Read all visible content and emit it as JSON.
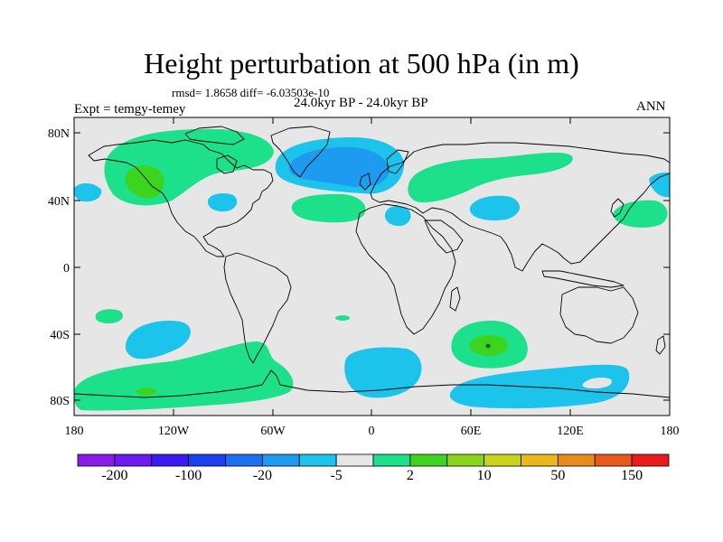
{
  "title": "Height perturbation at 500 hPa (in m)",
  "stats": "rmsd= 1.8658 diff= -6.03503e-10",
  "period": "24.0kyr BP - 24.0kyr BP",
  "experiment": "Expt = temgy-temey",
  "season": "ANN",
  "lat_ticks": [
    "80N",
    "40N",
    "0",
    "40S",
    "80S"
  ],
  "lon_ticks": [
    "180",
    "120W",
    "60W",
    "0",
    "60E",
    "120E",
    "180"
  ],
  "colorbar": {
    "colors": [
      "#8a1ce8",
      "#6a1cf0",
      "#3a1cf0",
      "#1c40f0",
      "#1c6ff0",
      "#1c9bf0",
      "#1cc3ea",
      "#e6e6e6",
      "#1ce08a",
      "#3cd41c",
      "#8cd41c",
      "#c8d41c",
      "#e8b81c",
      "#e88c1c",
      "#e85a1c",
      "#e81c1c"
    ],
    "labels": [
      "-200",
      "-100",
      "-20",
      "-5",
      "2",
      "10",
      "50",
      "150"
    ]
  },
  "map_colors": {
    "background": "#e6e6e6",
    "light_green": "#1ce08a",
    "green": "#3cd41c",
    "dark_green": "#1c8c3c",
    "cyan": "#1cc3ea",
    "blue": "#1c9bf0"
  }
}
